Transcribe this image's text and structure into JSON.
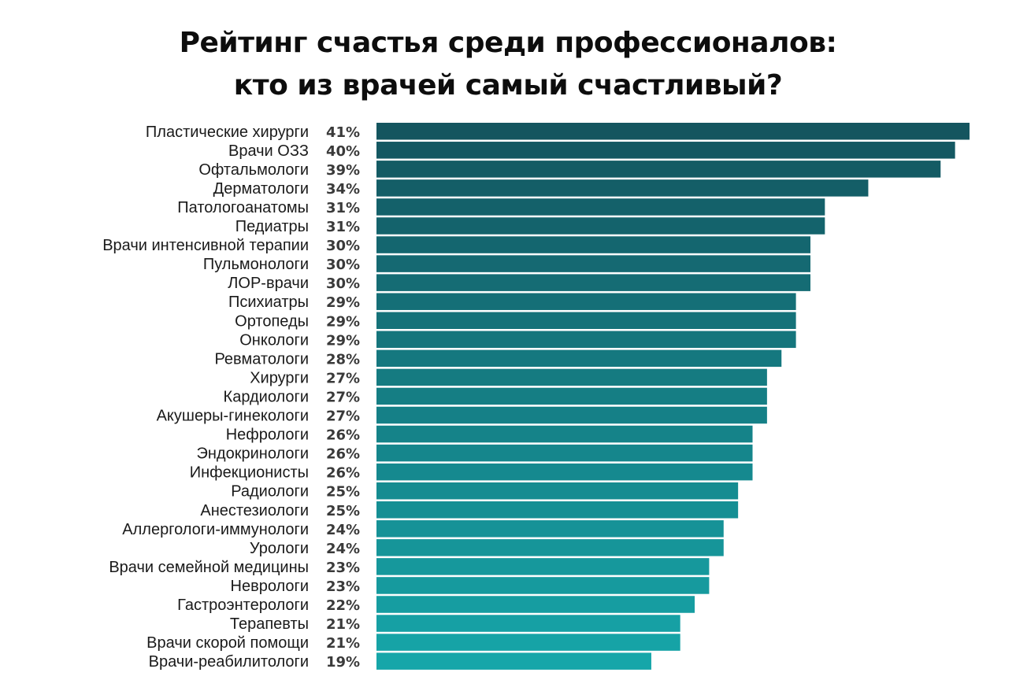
{
  "chart_data": {
    "type": "bar",
    "orientation": "horizontal",
    "title": [
      "Рейтинг счастья среди профессионалов:",
      "кто из врачей самый счастливый?"
    ],
    "categories": [
      "Пластические хирурги",
      "Врачи ОЗЗ",
      "Офтальмологи",
      "Дерматологи",
      "Патологоанатомы",
      "Педиатры",
      "Врачи интенсивной терапии",
      "Пульмонологи",
      "ЛОР-врачи",
      "Психиатры",
      "Ортопеды",
      "Онкологи",
      "Ревматологи",
      "Хирурги",
      "Кардиологи",
      "Акушеры-гинекологи",
      "Нефрологи",
      "Эндокринологи",
      "Инфекционисты",
      "Радиологи",
      "Анестезиологи",
      "Аллергологи-иммунологи",
      "Урологи",
      "Врачи семейной медицины",
      "Неврологи",
      "Гастроэнтерологи",
      "Терапевты",
      "Врачи скорой помощи",
      "Врачи-реабилитологи"
    ],
    "values": [
      41,
      40,
      39,
      34,
      31,
      31,
      30,
      30,
      30,
      29,
      29,
      29,
      28,
      27,
      27,
      27,
      26,
      26,
      26,
      25,
      25,
      24,
      24,
      23,
      23,
      22,
      21,
      21,
      19
    ],
    "value_labels": [
      "41%",
      "40%",
      "39%",
      "34%",
      "31%",
      "31%",
      "30%",
      "30%",
      "30%",
      "29%",
      "29%",
      "29%",
      "28%",
      "27%",
      "27%",
      "27%",
      "26%",
      "26%",
      "26%",
      "25%",
      "25%",
      "24%",
      "24%",
      "23%",
      "23%",
      "22%",
      "21%",
      "21%",
      "19%"
    ],
    "unit": "%",
    "colors": {
      "top": "#14555f",
      "bottom": "#16a6a9"
    },
    "xlim": [
      0,
      41
    ],
    "grid": false,
    "legend": "none"
  }
}
